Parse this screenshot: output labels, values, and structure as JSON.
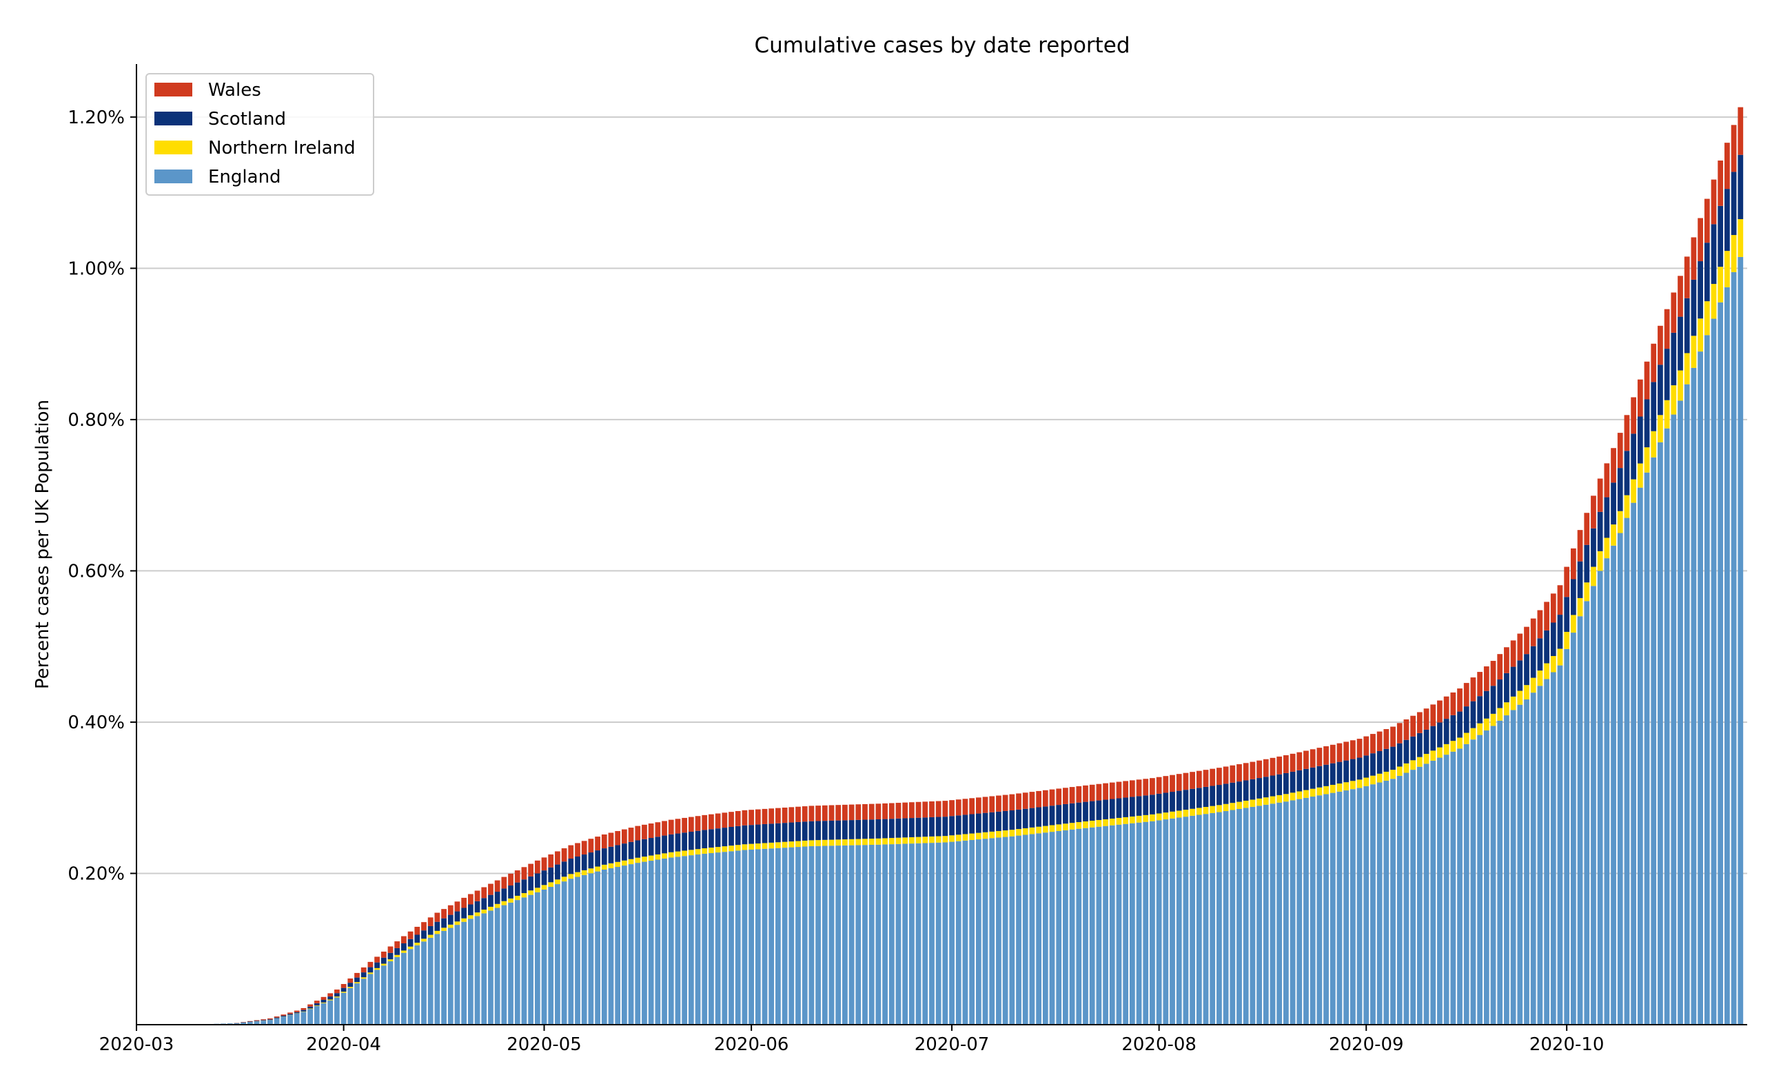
{
  "chart_data": {
    "type": "bar",
    "stacked": true,
    "title": "Cumulative cases by date reported",
    "xlabel": "",
    "ylabel": "Percent cases per UK Population",
    "x_start": "2020-03-01",
    "x_end": "2020-10-27",
    "xlim": [
      "2020-03-01",
      "2020-10-28"
    ],
    "ylim": [
      0,
      1.27
    ],
    "y_unit": "%",
    "x_ticks": [
      "2020-03",
      "2020-04",
      "2020-05",
      "2020-06",
      "2020-07",
      "2020-08",
      "2020-09",
      "2020-10"
    ],
    "y_ticks": [
      "0.20%",
      "0.40%",
      "0.60%",
      "0.80%",
      "1.00%",
      "1.20%"
    ],
    "y_tick_values": [
      0.2,
      0.4,
      0.6,
      0.8,
      1.0,
      1.2
    ],
    "grid": "horizontal",
    "legend_position": "top-left",
    "legend": [
      "Wales",
      "Scotland",
      "Northern Ireland",
      "England"
    ],
    "colors": {
      "Wales": "#d03a1e",
      "Scotland": "#0b3279",
      "Northern Ireland": "#ffdd00",
      "England": "#5b96c9",
      "grid": "#cccccc"
    },
    "series": [
      {
        "name": "England",
        "knots": [
          [
            "2020-03-01",
            0
          ],
          [
            "2020-03-10",
            0.0003
          ],
          [
            "2020-03-16",
            0.002
          ],
          [
            "2020-03-21",
            0.006
          ],
          [
            "2020-03-26",
            0.017
          ],
          [
            "2020-03-31",
            0.036
          ],
          [
            "2020-04-05",
            0.067
          ],
          [
            "2020-04-10",
            0.095
          ],
          [
            "2020-04-15",
            0.12
          ],
          [
            "2020-04-20",
            0.14
          ],
          [
            "2020-04-25",
            0.158
          ],
          [
            "2020-04-30",
            0.175
          ],
          [
            "2020-05-05",
            0.193
          ],
          [
            "2020-05-10",
            0.205
          ],
          [
            "2020-05-15",
            0.214
          ],
          [
            "2020-05-20",
            0.221
          ],
          [
            "2020-05-25",
            0.226
          ],
          [
            "2020-05-31",
            0.231
          ],
          [
            "2020-06-10",
            0.236
          ],
          [
            "2020-06-20",
            0.238
          ],
          [
            "2020-06-30",
            0.241
          ],
          [
            "2020-07-10",
            0.249
          ],
          [
            "2020-07-20",
            0.259
          ],
          [
            "2020-07-31",
            0.269
          ],
          [
            "2020-08-10",
            0.281
          ],
          [
            "2020-08-20",
            0.295
          ],
          [
            "2020-08-31",
            0.313
          ],
          [
            "2020-09-05",
            0.325
          ],
          [
            "2020-09-10",
            0.345
          ],
          [
            "2020-09-15",
            0.365
          ],
          [
            "2020-09-20",
            0.395
          ],
          [
            "2020-09-25",
            0.43
          ],
          [
            "2020-09-30",
            0.475
          ],
          [
            "2020-10-03",
            0.54
          ],
          [
            "2020-10-06",
            0.6
          ],
          [
            "2020-10-09",
            0.65
          ],
          [
            "2020-10-12",
            0.71
          ],
          [
            "2020-10-15",
            0.77
          ],
          [
            "2020-10-18",
            0.825
          ],
          [
            "2020-10-21",
            0.89
          ],
          [
            "2020-10-24",
            0.955
          ],
          [
            "2020-10-27",
            1.015
          ]
        ]
      },
      {
        "name": "Northern Ireland",
        "knots": [
          [
            "2020-03-01",
            0
          ],
          [
            "2020-03-15",
            0
          ],
          [
            "2020-03-25",
            0.0003
          ],
          [
            "2020-04-05",
            0.002
          ],
          [
            "2020-04-15",
            0.004
          ],
          [
            "2020-04-30",
            0.006
          ],
          [
            "2020-05-31",
            0.0075
          ],
          [
            "2020-06-30",
            0.0085
          ],
          [
            "2020-07-31",
            0.009
          ],
          [
            "2020-08-15",
            0.0095
          ],
          [
            "2020-08-31",
            0.011
          ],
          [
            "2020-09-10",
            0.013
          ],
          [
            "2020-09-20",
            0.016
          ],
          [
            "2020-09-30",
            0.022
          ],
          [
            "2020-10-06",
            0.026
          ],
          [
            "2020-10-12",
            0.032
          ],
          [
            "2020-10-18",
            0.04
          ],
          [
            "2020-10-23",
            0.046
          ],
          [
            "2020-10-27",
            0.05
          ]
        ]
      },
      {
        "name": "Scotland",
        "knots": [
          [
            "2020-03-01",
            0
          ],
          [
            "2020-03-15",
            0
          ],
          [
            "2020-03-25",
            0.0015
          ],
          [
            "2020-04-05",
            0.007
          ],
          [
            "2020-04-15",
            0.012
          ],
          [
            "2020-04-30",
            0.019
          ],
          [
            "2020-05-15",
            0.023
          ],
          [
            "2020-05-31",
            0.025
          ],
          [
            "2020-06-30",
            0.0255
          ],
          [
            "2020-07-31",
            0.026
          ],
          [
            "2020-08-15",
            0.027
          ],
          [
            "2020-08-31",
            0.029
          ],
          [
            "2020-09-10",
            0.032
          ],
          [
            "2020-09-20",
            0.037
          ],
          [
            "2020-09-30",
            0.045
          ],
          [
            "2020-10-06",
            0.052
          ],
          [
            "2020-10-12",
            0.062
          ],
          [
            "2020-10-18",
            0.071
          ],
          [
            "2020-10-23",
            0.079
          ],
          [
            "2020-10-27",
            0.085
          ]
        ]
      },
      {
        "name": "Wales",
        "knots": [
          [
            "2020-03-01",
            0
          ],
          [
            "2020-03-15",
            0
          ],
          [
            "2020-03-25",
            0.002
          ],
          [
            "2020-04-05",
            0.007
          ],
          [
            "2020-04-15",
            0.012
          ],
          [
            "2020-04-30",
            0.017
          ],
          [
            "2020-05-15",
            0.019
          ],
          [
            "2020-05-31",
            0.02
          ],
          [
            "2020-06-30",
            0.021
          ],
          [
            "2020-07-31",
            0.022
          ],
          [
            "2020-08-15",
            0.023
          ],
          [
            "2020-08-31",
            0.025
          ],
          [
            "2020-09-10",
            0.028
          ],
          [
            "2020-09-20",
            0.033
          ],
          [
            "2020-09-30",
            0.039
          ],
          [
            "2020-10-06",
            0.044
          ],
          [
            "2020-10-12",
            0.049
          ],
          [
            "2020-10-18",
            0.054
          ],
          [
            "2020-10-23",
            0.059
          ],
          [
            "2020-10-27",
            0.063
          ]
        ]
      }
    ]
  }
}
